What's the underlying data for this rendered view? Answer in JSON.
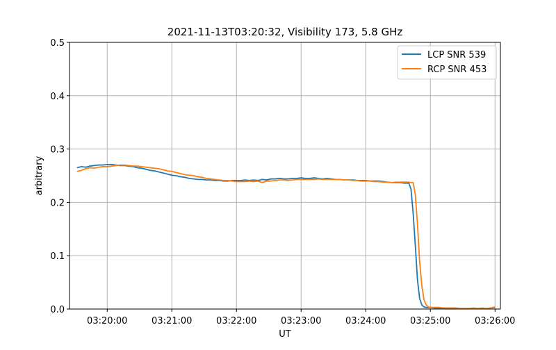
{
  "chart_data": {
    "type": "line",
    "title": "2021-11-13T03:20:32, Visibility 173, 5.8 GHz",
    "xlabel": "UT",
    "ylabel": "arbitrary",
    "ylim": [
      0.0,
      0.5
    ],
    "xlim": [
      "03:19:25",
      "03:26:05"
    ],
    "x_ticks": [
      "03:20:00",
      "03:21:00",
      "03:22:00",
      "03:23:00",
      "03:24:00",
      "03:25:00",
      "03:26:00"
    ],
    "y_ticks": [
      "0.0",
      "0.1",
      "0.2",
      "0.3",
      "0.4",
      "0.5"
    ],
    "grid": true,
    "legend_position": "top-right",
    "series": [
      {
        "name": "LCP SNR 539",
        "color": "#1f77b4",
        "x": [
          "03:19:32",
          "03:19:36",
          "03:19:40",
          "03:19:44",
          "03:19:48",
          "03:19:52",
          "03:19:56",
          "03:20:00",
          "03:20:04",
          "03:20:08",
          "03:20:12",
          "03:20:16",
          "03:20:20",
          "03:20:24",
          "03:20:28",
          "03:20:32",
          "03:20:36",
          "03:20:40",
          "03:20:44",
          "03:20:48",
          "03:20:52",
          "03:20:56",
          "03:21:00",
          "03:21:04",
          "03:21:08",
          "03:21:12",
          "03:21:16",
          "03:21:20",
          "03:21:24",
          "03:21:28",
          "03:21:32",
          "03:21:36",
          "03:21:40",
          "03:21:44",
          "03:21:48",
          "03:21:52",
          "03:21:56",
          "03:22:00",
          "03:22:04",
          "03:22:08",
          "03:22:12",
          "03:22:16",
          "03:22:20",
          "03:22:24",
          "03:22:28",
          "03:22:32",
          "03:22:36",
          "03:22:40",
          "03:22:44",
          "03:22:48",
          "03:22:52",
          "03:22:56",
          "03:23:00",
          "03:23:04",
          "03:23:08",
          "03:23:12",
          "03:23:16",
          "03:23:20",
          "03:23:24",
          "03:23:28",
          "03:23:32",
          "03:23:36",
          "03:23:40",
          "03:23:44",
          "03:23:48",
          "03:23:52",
          "03:23:56",
          "03:24:00",
          "03:24:04",
          "03:24:08",
          "03:24:12",
          "03:24:16",
          "03:24:20",
          "03:24:24",
          "03:24:28",
          "03:24:32",
          "03:24:36",
          "03:24:40",
          "03:24:42",
          "03:24:44",
          "03:24:46",
          "03:24:48",
          "03:24:50",
          "03:24:52",
          "03:24:54",
          "03:24:56",
          "03:24:58",
          "03:25:00",
          "03:25:04",
          "03:25:08",
          "03:25:12",
          "03:25:16",
          "03:25:20",
          "03:25:24",
          "03:25:28",
          "03:25:32",
          "03:25:36",
          "03:25:40",
          "03:25:44",
          "03:25:48",
          "03:25:52",
          "03:25:56",
          "03:26:00"
        ],
        "y": [
          0.265,
          0.267,
          0.266,
          0.268,
          0.269,
          0.27,
          0.27,
          0.271,
          0.271,
          0.27,
          0.269,
          0.269,
          0.268,
          0.267,
          0.265,
          0.264,
          0.262,
          0.26,
          0.259,
          0.257,
          0.255,
          0.253,
          0.251,
          0.25,
          0.248,
          0.247,
          0.245,
          0.244,
          0.243,
          0.243,
          0.242,
          0.242,
          0.241,
          0.241,
          0.24,
          0.24,
          0.241,
          0.241,
          0.241,
          0.242,
          0.241,
          0.242,
          0.241,
          0.243,
          0.242,
          0.244,
          0.244,
          0.245,
          0.244,
          0.244,
          0.245,
          0.245,
          0.246,
          0.245,
          0.245,
          0.246,
          0.245,
          0.244,
          0.245,
          0.244,
          0.243,
          0.243,
          0.242,
          0.242,
          0.242,
          0.241,
          0.241,
          0.241,
          0.24,
          0.24,
          0.24,
          0.239,
          0.238,
          0.237,
          0.237,
          0.237,
          0.236,
          0.236,
          0.225,
          0.18,
          0.12,
          0.055,
          0.02,
          0.008,
          0.004,
          0.003,
          0.003,
          0.003,
          0.002,
          0.002,
          0.002,
          0.001,
          0.001,
          0.001,
          0.001,
          0.001,
          0.001,
          0.001,
          0.001,
          0.001,
          0.001,
          0.002,
          0.003
        ]
      },
      {
        "name": "RCP SNR 453",
        "color": "#ff7f0e",
        "x": [
          "03:19:32",
          "03:19:36",
          "03:19:40",
          "03:19:44",
          "03:19:48",
          "03:19:52",
          "03:19:56",
          "03:20:00",
          "03:20:04",
          "03:20:08",
          "03:20:12",
          "03:20:16",
          "03:20:20",
          "03:20:24",
          "03:20:28",
          "03:20:32",
          "03:20:36",
          "03:20:40",
          "03:20:44",
          "03:20:48",
          "03:20:52",
          "03:20:56",
          "03:21:00",
          "03:21:04",
          "03:21:08",
          "03:21:12",
          "03:21:16",
          "03:21:20",
          "03:21:24",
          "03:21:28",
          "03:21:32",
          "03:21:36",
          "03:21:40",
          "03:21:44",
          "03:21:48",
          "03:21:52",
          "03:21:56",
          "03:22:00",
          "03:22:04",
          "03:22:08",
          "03:22:12",
          "03:22:16",
          "03:22:20",
          "03:22:24",
          "03:22:28",
          "03:22:32",
          "03:22:36",
          "03:22:40",
          "03:22:44",
          "03:22:48",
          "03:22:52",
          "03:22:56",
          "03:23:00",
          "03:23:04",
          "03:23:08",
          "03:23:12",
          "03:23:16",
          "03:23:20",
          "03:23:24",
          "03:23:28",
          "03:23:32",
          "03:23:36",
          "03:23:40",
          "03:23:44",
          "03:23:48",
          "03:23:52",
          "03:23:56",
          "03:24:00",
          "03:24:04",
          "03:24:08",
          "03:24:12",
          "03:24:16",
          "03:24:20",
          "03:24:24",
          "03:24:28",
          "03:24:32",
          "03:24:36",
          "03:24:40",
          "03:24:42",
          "03:24:44",
          "03:24:46",
          "03:24:48",
          "03:24:50",
          "03:24:52",
          "03:24:54",
          "03:24:56",
          "03:24:58",
          "03:25:00",
          "03:25:04",
          "03:25:08",
          "03:25:12",
          "03:25:16",
          "03:25:20",
          "03:25:24",
          "03:25:28",
          "03:25:32",
          "03:25:36",
          "03:25:40",
          "03:25:44",
          "03:25:48",
          "03:25:52",
          "03:25:56",
          "03:26:00"
        ],
        "y": [
          0.258,
          0.26,
          0.263,
          0.265,
          0.264,
          0.266,
          0.267,
          0.267,
          0.268,
          0.269,
          0.27,
          0.27,
          0.269,
          0.268,
          0.268,
          0.267,
          0.266,
          0.265,
          0.264,
          0.263,
          0.261,
          0.259,
          0.258,
          0.256,
          0.254,
          0.252,
          0.251,
          0.25,
          0.248,
          0.247,
          0.245,
          0.244,
          0.243,
          0.242,
          0.241,
          0.241,
          0.24,
          0.239,
          0.239,
          0.239,
          0.24,
          0.239,
          0.24,
          0.237,
          0.24,
          0.24,
          0.241,
          0.242,
          0.242,
          0.241,
          0.242,
          0.243,
          0.243,
          0.243,
          0.243,
          0.243,
          0.244,
          0.243,
          0.243,
          0.243,
          0.243,
          0.243,
          0.242,
          0.242,
          0.241,
          0.241,
          0.24,
          0.24,
          0.24,
          0.239,
          0.239,
          0.238,
          0.238,
          0.237,
          0.238,
          0.238,
          0.238,
          0.238,
          0.237,
          0.237,
          0.215,
          0.16,
          0.09,
          0.045,
          0.018,
          0.008,
          0.004,
          0.003,
          0.003,
          0.003,
          0.002,
          0.002,
          0.002,
          0.002,
          0.001,
          0.001,
          0.001,
          0.002,
          0.001,
          0.002,
          0.001,
          0.002,
          0.004
        ]
      }
    ]
  }
}
